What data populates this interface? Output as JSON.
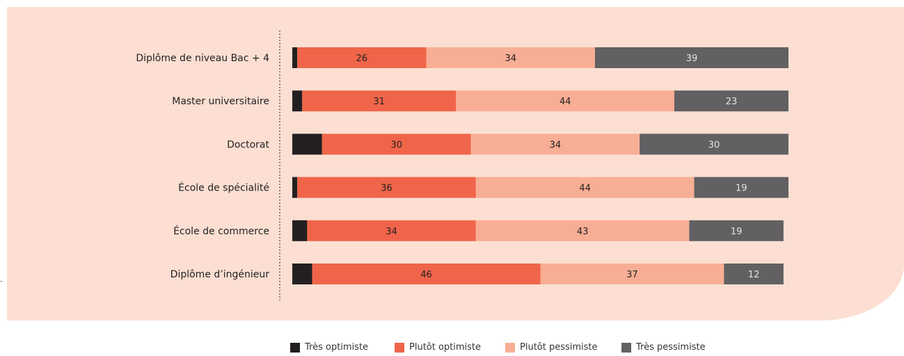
{
  "chart_data": {
    "type": "bar",
    "orientation": "horizontal",
    "stacked": true,
    "title": "",
    "xlabel": "",
    "ylabel": "",
    "xlim": [
      0,
      100
    ],
    "grid": false,
    "legend_position": "bottom",
    "categories": [
      "Diplôme de niveau Bac + 4",
      "Master universitaire",
      "Doctorat",
      "École de spécialité",
      "École de commerce",
      "Diplôme d’ingénieur"
    ],
    "series": [
      {
        "name": "Très optimiste",
        "color": "#231f20",
        "values": [
          1,
          2,
          6,
          1,
          3,
          4
        ],
        "show_labels": false
      },
      {
        "name": "Plutôt optimiste",
        "color": "#f0654a",
        "values": [
          26,
          31,
          30,
          36,
          34,
          46
        ],
        "show_labels": true
      },
      {
        "name": "Plutôt pessimiste",
        "color": "#f8ae94",
        "values": [
          34,
          44,
          34,
          44,
          43,
          37
        ],
        "show_labels": true
      },
      {
        "name": "Très pessimiste",
        "color": "#626062",
        "values": [
          39,
          23,
          30,
          19,
          19,
          12
        ],
        "show_labels": true
      }
    ]
  },
  "colors": {
    "background_panel": "#fcdfd2",
    "label_text": "#231f20"
  }
}
